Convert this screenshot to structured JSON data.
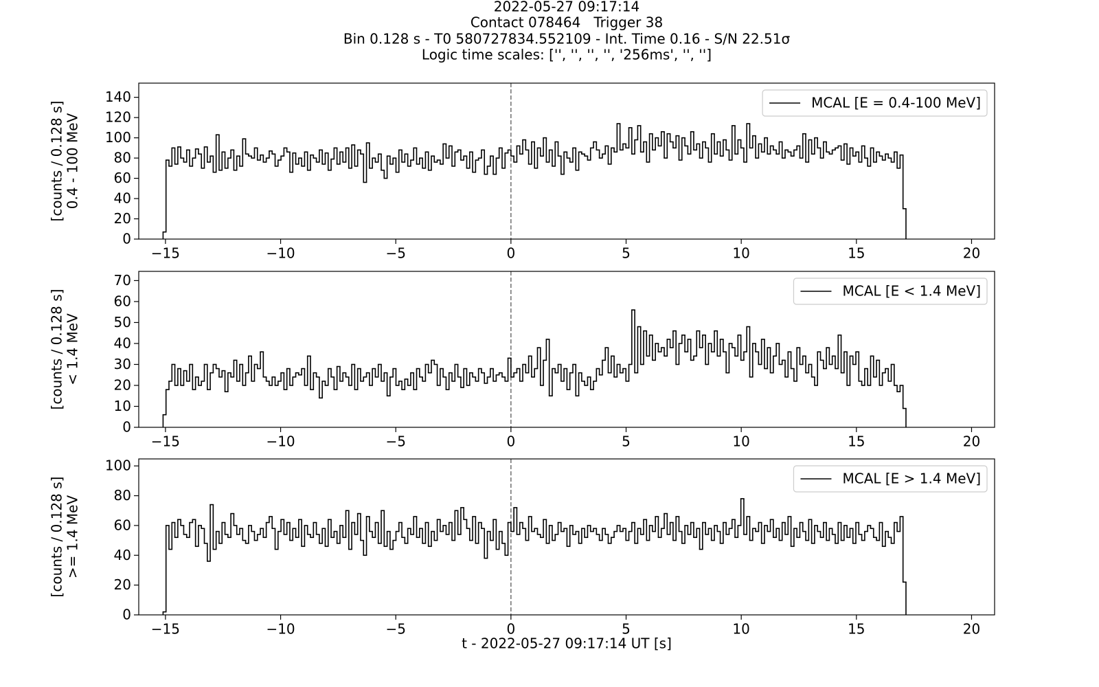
{
  "chart_data": {
    "type": "histogram",
    "title": [
      "2022-05-27 09:17:14",
      "Contact 078464   Trigger 38",
      "Bin 0.128 s - T0 580727834.552109 - Int. Time 0.16 - S/N 22.51σ",
      "Logic time scales: ['', '', '', '', '256ms', '', '']"
    ],
    "xlabel": "t - 2022-05-27 09:17:14 UT [s]",
    "xlim": [
      -16.16,
      21.0
    ],
    "xticks": [
      {
        "value": -15,
        "label": "−15"
      },
      {
        "value": -10,
        "label": "−10"
      },
      {
        "value": -5,
        "label": "−5"
      },
      0,
      5,
      10,
      15,
      20
    ],
    "vline": 0,
    "legend": "upper right",
    "bins": [
      -15.104,
      -14.976,
      -14.848,
      -14.72,
      -14.592,
      -14.464,
      -14.336,
      -14.208,
      -14.08,
      -13.952,
      -13.824,
      -13.696,
      -13.568,
      -13.44,
      -13.312,
      -13.184,
      -13.056,
      -12.928,
      -12.8,
      -12.672,
      -12.544,
      -12.416,
      -12.288,
      -12.16,
      -12.032,
      -11.904,
      -11.776,
      -11.648,
      -11.52,
      -11.392,
      -11.264,
      -11.136,
      -11.008,
      -10.88,
      -10.752,
      -10.624,
      -10.496,
      -10.368,
      -10.24,
      -10.112,
      -9.984,
      -9.856,
      -9.728,
      -9.6,
      -9.472,
      -9.344,
      -9.216,
      -9.088,
      -8.96,
      -8.832,
      -8.704,
      -8.576,
      -8.448,
      -8.32,
      -8.192,
      -8.064,
      -7.936,
      -7.808,
      -7.68,
      -7.552,
      -7.424,
      -7.296,
      -7.168,
      -7.04,
      -6.912,
      -6.784,
      -6.656,
      -6.528,
      -6.4,
      -6.272,
      -6.144,
      -6.016,
      -5.888,
      -5.76,
      -5.632,
      -5.504,
      -5.376,
      -5.248,
      -5.12,
      -4.992,
      -4.864,
      -4.736,
      -4.608,
      -4.48,
      -4.352,
      -4.224,
      -4.096,
      -3.968,
      -3.84,
      -3.712,
      -3.584,
      -3.456,
      -3.328,
      -3.2,
      -3.072,
      -2.944,
      -2.816,
      -2.688,
      -2.56,
      -2.432,
      -2.304,
      -2.176,
      -2.048,
      -1.92,
      -1.792,
      -1.664,
      -1.536,
      -1.408,
      -1.28,
      -1.152,
      -1.024,
      -0.896,
      -0.768,
      -0.64,
      -0.512,
      -0.384,
      -0.256,
      -0.128,
      0,
      0.128,
      0.256,
      0.384,
      0.512,
      0.64,
      0.768,
      0.896,
      1.024,
      1.152,
      1.28,
      1.408,
      1.536,
      1.664,
      1.792,
      1.92,
      2.048,
      2.176,
      2.304,
      2.432,
      2.56,
      2.688,
      2.816,
      2.944,
      3.072,
      3.2,
      3.328,
      3.456,
      3.584,
      3.712,
      3.84,
      3.968,
      4.096,
      4.224,
      4.352,
      4.48,
      4.608,
      4.736,
      4.864,
      4.992,
      5.12,
      5.248,
      5.376,
      5.504,
      5.632,
      5.76,
      5.888,
      6.016,
      6.144,
      6.272,
      6.4,
      6.528,
      6.656,
      6.784,
      6.912,
      7.04,
      7.168,
      7.296,
      7.424,
      7.552,
      7.68,
      7.808,
      7.936,
      8.064,
      8.192,
      8.32,
      8.448,
      8.576,
      8.704,
      8.832,
      8.96,
      9.088,
      9.216,
      9.344,
      9.472,
      9.6,
      9.728,
      9.856,
      9.984,
      10.112,
      10.24,
      10.368,
      10.496,
      10.624,
      10.752,
      10.88,
      11.008,
      11.136,
      11.264,
      11.392,
      11.52,
      11.648,
      11.776,
      11.904,
      12.032,
      12.16,
      12.288,
      12.416,
      12.544,
      12.672,
      12.8,
      12.928,
      13.056,
      13.184,
      13.312,
      13.44,
      13.568,
      13.696,
      13.824,
      13.952,
      14.08,
      14.208,
      14.336,
      14.464,
      14.592,
      14.72,
      14.848,
      14.976,
      15.104,
      15.232,
      15.36,
      15.488,
      15.616,
      15.744,
      15.872,
      16,
      16.128,
      16.256,
      16.384,
      16.512,
      16.64,
      16.768,
      16.896,
      17.024,
      17.152
    ],
    "panels": [
      {
        "ylabel": [
          "[counts / 0.128 s]",
          "0.4 - 100 MeV"
        ],
        "ylim": [
          0,
          154
        ],
        "yticks": [
          0,
          20,
          40,
          60,
          80,
          100,
          120,
          140
        ],
        "series": [
          {
            "name": "MCAL [E = 0.4-100 MeV]",
            "color": "#000000",
            "values": [
              7,
              78,
              72,
              90,
              74,
              91,
              80,
              76,
              88,
              72,
              80,
              89,
              84,
              70,
              91,
              76,
              82,
              66,
              103,
              68,
              86,
              70,
              80,
              88,
              68,
              82,
              72,
              99,
              84,
              82,
              80,
              90,
              78,
              83,
              76,
              80,
              87,
              84,
              72,
              78,
              82,
              90,
              86,
              66,
              85,
              74,
              80,
              72,
              86,
              68,
              83,
              80,
              76,
              88,
              74,
              85,
              68,
              79,
              90,
              74,
              86,
              76,
              90,
              70,
              93,
              72,
              88,
              84,
              56,
              95,
              70,
              80,
              76,
              84,
              68,
              60,
              82,
              74,
              80,
              66,
              88,
              76,
              84,
              72,
              78,
              90,
              74,
              80,
              70,
              86,
              68,
              82,
              76,
              78,
              74,
              94,
              80,
              92,
              72,
              86,
              88,
              78,
              82,
              70,
              86,
              66,
              78,
              80,
              88,
              64,
              72,
              82,
              64,
              80,
              90,
              70,
              85,
              88,
              82,
              76,
              92,
              84,
              98,
              88,
              74,
              96,
              70,
              90,
              82,
              100,
              76,
              88,
              72,
              96,
              82,
              64,
              86,
              80,
              76,
              90,
              68,
              86,
              84,
              82,
              78,
              90,
              96,
              88,
              80,
              84,
              92,
              74,
              90,
              86,
              114,
              88,
              94,
              90,
              110,
              84,
              98,
              112,
              86,
              96,
              76,
              104,
              88,
              100,
              92,
              106,
              80,
              104,
              96,
              90,
              102,
              78,
              100,
              92,
              84,
              106,
              88,
              94,
              80,
              96,
              90,
              76,
              104,
              84,
              96,
              82,
              98,
              88,
              78,
              112,
              84,
              98,
              90,
              76,
              114,
              90,
              102,
              80,
              94,
              86,
              100,
              84,
              92,
              88,
              84,
              96,
              80,
              88,
              86,
              82,
              88,
              92,
              80,
              104,
              76,
              98,
              84,
              100,
              90,
              80,
              96,
              86,
              84,
              88,
              90,
              92,
              78,
              94,
              74,
              90,
              82,
              86,
              76,
              92,
              80,
              72,
              90,
              76,
              86,
              82,
              78,
              84,
              80,
              76,
              86,
              70,
              83,
              30
            ]
          }
        ]
      },
      {
        "ylabel": [
          "[counts / 0.128 s]",
          "< 1.4 MeV"
        ],
        "ylim": [
          0,
          74.4
        ],
        "yticks": [
          0,
          10,
          20,
          30,
          40,
          50,
          60,
          70
        ],
        "series": [
          {
            "name": "MCAL [E < 1.4 MeV]",
            "color": "#000000",
            "values": [
              6,
              18,
              22,
              30,
              20,
              28,
              20,
              27,
              22,
              30,
              18,
              24,
              20,
              22,
              30,
              18,
              26,
              30,
              28,
              24,
              27,
              17,
              26,
              24,
              32,
              22,
              30,
              20,
              26,
              34,
              22,
              30,
              28,
              36,
              24,
              22,
              20,
              24,
              20,
              22,
              26,
              18,
              28,
              20,
              24,
              26,
              25,
              28,
              20,
              34,
              18,
              26,
              24,
              14,
              22,
              20,
              28,
              24,
              18,
              29,
              22,
              26,
              24,
              20,
              30,
              18,
              28,
              22,
              24,
              26,
              20,
              28,
              24,
              30,
              22,
              26,
              15,
              24,
              28,
              20,
              22,
              18,
              23,
              20,
              26,
              18,
              28,
              24,
              22,
              30,
              26,
              32,
              30,
              20,
              28,
              24,
              18,
              26,
              22,
              30,
              24,
              19,
              28,
              20,
              26,
              24,
              22,
              28,
              26,
              21,
              24,
              28,
              22,
              25,
              26,
              24,
              22,
              33,
              24,
              26,
              28,
              22,
              30,
              26,
              34,
              24,
              28,
              38,
              20,
              32,
              42,
              15,
              28,
              26,
              30,
              22,
              28,
              18,
              26,
              30,
              15,
              26,
              22,
              20,
              24,
              18,
              22,
              28,
              25,
              32,
              38,
              26,
              34,
              24,
              30,
              26,
              28,
              22,
              30,
              56,
              26,
              48,
              30,
              46,
              34,
              44,
              32,
              40,
              36,
              38,
              34,
              42,
              38,
              46,
              30,
              40,
              44,
              36,
              42,
              32,
              34,
              46,
              38,
              44,
              30,
              40,
              36,
              46,
              34,
              42,
              36,
              26,
              40,
              38,
              34,
              44,
              32,
              36,
              48,
              24,
              40,
              36,
              30,
              42,
              28,
              38,
              26,
              34,
              40,
              30,
              32,
              24,
              36,
              28,
              22,
              38,
              30,
              34,
              26,
              30,
              24,
              20,
              36,
              32,
              28,
              38,
              30,
              34,
              28,
              44,
              26,
              36,
              20,
              34,
              30,
              36,
              22,
              20,
              28,
              20,
              34,
              24,
              32,
              20,
              26,
              28,
              22,
              30,
              20,
              17,
              20,
              9
            ]
          }
        ]
      },
      {
        "ylabel": [
          "[counts / 0.128 s]",
          ">= 1.4 MeV"
        ],
        "ylim": [
          0,
          104.7
        ],
        "yticks": [
          0,
          20,
          40,
          60,
          80,
          100
        ],
        "series": [
          {
            "name": "MCAL [E > 1.4 MeV]",
            "color": "#000000",
            "values": [
              2,
              60,
              44,
              62,
              52,
              64,
              60,
              54,
              52,
              62,
              64,
              46,
              60,
              58,
              48,
              36,
              74,
              44,
              56,
              48,
              62,
              54,
              52,
              68,
              60,
              54,
              58,
              50,
              48,
              60,
              56,
              50,
              54,
              58,
              52,
              62,
              66,
              58,
              44,
              56,
              64,
              54,
              62,
              50,
              58,
              52,
              64,
              46,
              60,
              54,
              52,
              62,
              54,
              48,
              58,
              46,
              64,
              52,
              56,
              48,
              60,
              52,
              70,
              44,
              62,
              54,
              68,
              50,
              40,
              66,
              56,
              52,
              62,
              48,
              70,
              46,
              56,
              44,
              50,
              56,
              62,
              52,
              48,
              58,
              54,
              66,
              52,
              58,
              48,
              62,
              46,
              56,
              50,
              64,
              56,
              60,
              54,
              62,
              50,
              70,
              54,
              72,
              64,
              58,
              50,
              66,
              48,
              62,
              58,
              38,
              56,
              50,
              64,
              44,
              56,
              48,
              40,
              62,
              56,
              72,
              54,
              62,
              58,
              50,
              66,
              56,
              58,
              54,
              52,
              64,
              48,
              60,
              50,
              54,
              62,
              56,
              58,
              46,
              60,
              54,
              56,
              48,
              58,
              52,
              60,
              56,
              58,
              54,
              50,
              58,
              54,
              48,
              52,
              56,
              60,
              56,
              58,
              50,
              56,
              62,
              48,
              58,
              54,
              64,
              50,
              60,
              56,
              66,
              52,
              58,
              68,
              54,
              62,
              50,
              66,
              56,
              48,
              60,
              54,
              62,
              52,
              58,
              44,
              62,
              54,
              58,
              50,
              60,
              56,
              48,
              62,
              54,
              58,
              64,
              52,
              60,
              78,
              54,
              66,
              50,
              58,
              56,
              62,
              48,
              60,
              56,
              64,
              52,
              58,
              50,
              62,
              54,
              66,
              46,
              58,
              52,
              62,
              56,
              50,
              64,
              48,
              60,
              56,
              52,
              62,
              50,
              58,
              54,
              48,
              62,
              50,
              60,
              52,
              58,
              48,
              62,
              54,
              50,
              56,
              60,
              58,
              52,
              50,
              62,
              46,
              56,
              52,
              48,
              62,
              56,
              66,
              22
            ]
          }
        ]
      }
    ]
  }
}
